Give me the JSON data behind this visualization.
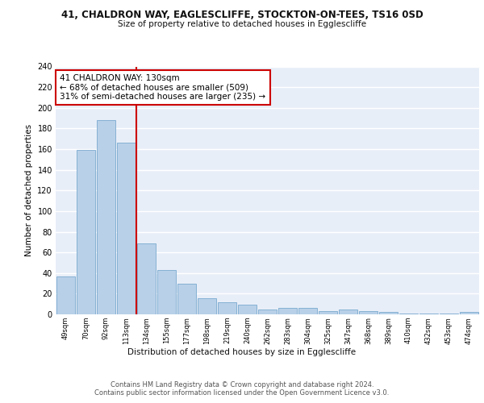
{
  "title1": "41, CHALDRON WAY, EAGLESCLIFFE, STOCKTON-ON-TEES, TS16 0SD",
  "title2": "Size of property relative to detached houses in Egglescliffe",
  "xlabel": "Distribution of detached houses by size in Egglescliffe",
  "ylabel": "Number of detached properties",
  "categories": [
    "49sqm",
    "70sqm",
    "92sqm",
    "113sqm",
    "134sqm",
    "155sqm",
    "177sqm",
    "198sqm",
    "219sqm",
    "240sqm",
    "262sqm",
    "283sqm",
    "304sqm",
    "325sqm",
    "347sqm",
    "368sqm",
    "389sqm",
    "410sqm",
    "432sqm",
    "453sqm",
    "474sqm"
  ],
  "values": [
    37,
    159,
    188,
    166,
    69,
    43,
    30,
    16,
    12,
    9,
    5,
    6,
    6,
    3,
    5,
    3,
    2,
    1,
    1,
    1,
    2
  ],
  "bar_color": "#b8d0e8",
  "bar_edge_color": "#7aaacf",
  "background_color": "#e8eef8",
  "grid_color": "#ffffff",
  "property_line_color": "#cc0000",
  "annotation_text": "41 CHALDRON WAY: 130sqm\n← 68% of detached houses are smaller (509)\n31% of semi-detached houses are larger (235) →",
  "annotation_box_color": "#ffffff",
  "annotation_box_edge": "#cc0000",
  "footer": "Contains HM Land Registry data © Crown copyright and database right 2024.\nContains public sector information licensed under the Open Government Licence v3.0.",
  "ylim": [
    0,
    240
  ],
  "yticks": [
    0,
    20,
    40,
    60,
    80,
    100,
    120,
    140,
    160,
    180,
    200,
    220,
    240
  ]
}
